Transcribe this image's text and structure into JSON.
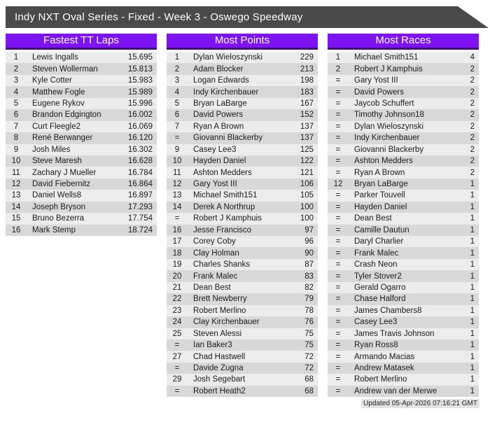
{
  "banner": {
    "title": "Indy NXT Oval Series - Fixed - Week 3 - Oswego Speedway"
  },
  "colors": {
    "banner_bg": "#4a4a4a",
    "header_purple": "#7d12f2",
    "header_border": "#470a7e",
    "row_light": "#ececec",
    "row_dark": "#d8d8d8"
  },
  "footer": {
    "updated": "Updated 05-Apr-2026 07:16:21 GMT"
  },
  "tables": [
    {
      "title": "Fastest TT Laps",
      "rows": [
        {
          "rank": "1",
          "name": "Lewis Ingalls",
          "value": "15.695"
        },
        {
          "rank": "2",
          "name": "Steven Wollerman",
          "value": "15.813"
        },
        {
          "rank": "3",
          "name": "Kyle Cotter",
          "value": "15.983"
        },
        {
          "rank": "4",
          "name": "Matthew Fogle",
          "value": "15.989"
        },
        {
          "rank": "5",
          "name": "Eugene Rykov",
          "value": "15.996"
        },
        {
          "rank": "6",
          "name": "Brandon Edgington",
          "value": "16.002"
        },
        {
          "rank": "7",
          "name": "Curt Fleegle2",
          "value": "16.069"
        },
        {
          "rank": "8",
          "name": "René Berwanger",
          "value": "16.120"
        },
        {
          "rank": "9",
          "name": "Josh Miles",
          "value": "16.302"
        },
        {
          "rank": "10",
          "name": "Steve Maresh",
          "value": "16.628"
        },
        {
          "rank": "11",
          "name": "Zachary J Mueller",
          "value": "16.784"
        },
        {
          "rank": "12",
          "name": "David Fiebernitz",
          "value": "16.864"
        },
        {
          "rank": "13",
          "name": "Daniel Wells8",
          "value": "16.897"
        },
        {
          "rank": "14",
          "name": "Joseph Bryson",
          "value": "17.293"
        },
        {
          "rank": "15",
          "name": "Bruno Bezerra",
          "value": "17.754"
        },
        {
          "rank": "16",
          "name": "Mark Stemp",
          "value": "18.724"
        }
      ]
    },
    {
      "title": "Most Points",
      "rows": [
        {
          "rank": "1",
          "name": "Dylan Wieloszynski",
          "value": "229"
        },
        {
          "rank": "2",
          "name": "Adam Blocker",
          "value": "213"
        },
        {
          "rank": "3",
          "name": "Logan Edwards",
          "value": "198"
        },
        {
          "rank": "4",
          "name": "Indy Kirchenbauer",
          "value": "183"
        },
        {
          "rank": "5",
          "name": "Bryan LaBarge",
          "value": "167"
        },
        {
          "rank": "6",
          "name": "David Powers",
          "value": "152"
        },
        {
          "rank": "7",
          "name": "Ryan A Brown",
          "value": "137"
        },
        {
          "rank": "=",
          "name": "Giovanni Blackerby",
          "value": "137"
        },
        {
          "rank": "9",
          "name": "Casey Lee3",
          "value": "125"
        },
        {
          "rank": "10",
          "name": "Hayden Daniel",
          "value": "122"
        },
        {
          "rank": "11",
          "name": "Ashton Medders",
          "value": "121"
        },
        {
          "rank": "12",
          "name": "Gary Yost III",
          "value": "106"
        },
        {
          "rank": "13",
          "name": "Michael Smith151",
          "value": "105"
        },
        {
          "rank": "14",
          "name": "Derek A Northrup",
          "value": "100"
        },
        {
          "rank": "=",
          "name": "Robert J Kamphuis",
          "value": "100"
        },
        {
          "rank": "16",
          "name": "Jesse Francisco",
          "value": "97"
        },
        {
          "rank": "17",
          "name": "Corey Coby",
          "value": "96"
        },
        {
          "rank": "18",
          "name": "Clay Holman",
          "value": "90"
        },
        {
          "rank": "19",
          "name": "Charles Shanks",
          "value": "87"
        },
        {
          "rank": "20",
          "name": "Frank Malec",
          "value": "83"
        },
        {
          "rank": "21",
          "name": "Dean Best",
          "value": "82"
        },
        {
          "rank": "22",
          "name": "Brett Newberry",
          "value": "79"
        },
        {
          "rank": "23",
          "name": "Robert Merlino",
          "value": "78"
        },
        {
          "rank": "24",
          "name": "Clay Kirchenbauer",
          "value": "76"
        },
        {
          "rank": "25",
          "name": "Steven Alessi",
          "value": "75"
        },
        {
          "rank": "=",
          "name": "Ian Baker3",
          "value": "75"
        },
        {
          "rank": "27",
          "name": "Chad Hastwell",
          "value": "72"
        },
        {
          "rank": "=",
          "name": "Davide Zugna",
          "value": "72"
        },
        {
          "rank": "29",
          "name": "Josh Segebart",
          "value": "68"
        },
        {
          "rank": "=",
          "name": "Robert Heath2",
          "value": "68"
        }
      ]
    },
    {
      "title": "Most Races",
      "rows": [
        {
          "rank": "1",
          "name": "Michael Smith151",
          "value": "4"
        },
        {
          "rank": "2",
          "name": "Robert J Kamphuis",
          "value": "2"
        },
        {
          "rank": "=",
          "name": "Gary Yost III",
          "value": "2"
        },
        {
          "rank": "=",
          "name": "David Powers",
          "value": "2"
        },
        {
          "rank": "=",
          "name": "Jaycob Schuffert",
          "value": "2"
        },
        {
          "rank": "=",
          "name": "Timothy Johnson18",
          "value": "2"
        },
        {
          "rank": "=",
          "name": "Dylan Wieloszynski",
          "value": "2"
        },
        {
          "rank": "=",
          "name": "Indy Kirchenbauer",
          "value": "2"
        },
        {
          "rank": "=",
          "name": "Giovanni Blackerby",
          "value": "2"
        },
        {
          "rank": "=",
          "name": "Ashton Medders",
          "value": "2"
        },
        {
          "rank": "=",
          "name": "Ryan A Brown",
          "value": "2"
        },
        {
          "rank": "12",
          "name": "Bryan LaBarge",
          "value": "1"
        },
        {
          "rank": "=",
          "name": "Parker Touvell",
          "value": "1"
        },
        {
          "rank": "=",
          "name": "Hayden Daniel",
          "value": "1"
        },
        {
          "rank": "=",
          "name": "Dean Best",
          "value": "1"
        },
        {
          "rank": "=",
          "name": "Camille Dautun",
          "value": "1"
        },
        {
          "rank": "=",
          "name": "Daryl Charlier",
          "value": "1"
        },
        {
          "rank": "=",
          "name": "Frank Malec",
          "value": "1"
        },
        {
          "rank": "=",
          "name": "Crash Neon",
          "value": "1"
        },
        {
          "rank": "=",
          "name": "Tyler Stover2",
          "value": "1"
        },
        {
          "rank": "=",
          "name": "Gerald Ogarro",
          "value": "1"
        },
        {
          "rank": "=",
          "name": "Chase Halford",
          "value": "1"
        },
        {
          "rank": "=",
          "name": "James Chambers8",
          "value": "1"
        },
        {
          "rank": "=",
          "name": "Casey Lee3",
          "value": "1"
        },
        {
          "rank": "=",
          "name": "James Travis Johnson",
          "value": "1"
        },
        {
          "rank": "=",
          "name": "Ryan Ross8",
          "value": "1"
        },
        {
          "rank": "=",
          "name": "Armando Macias",
          "value": "1"
        },
        {
          "rank": "=",
          "name": "Andrew Matasek",
          "value": "1"
        },
        {
          "rank": "=",
          "name": "Robert Merlino",
          "value": "1"
        },
        {
          "rank": "=",
          "name": "Andrew van der Merwe",
          "value": "1"
        }
      ]
    }
  ]
}
